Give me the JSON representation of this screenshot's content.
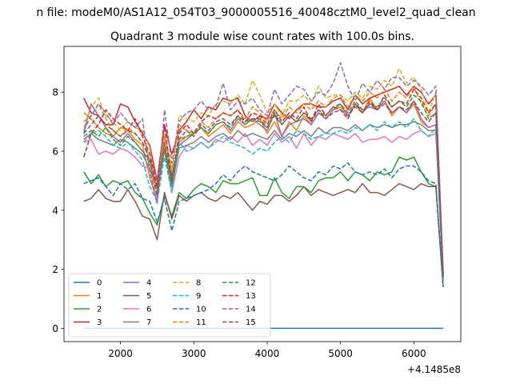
{
  "chart_data": {
    "type": "line",
    "suptitle": "n file: modeM0/AS1A12_054T03_9000005516_40048cztM0_level2_quad_clean",
    "title": "Quadrant 3 module wise count rates with 100.0s bins.",
    "xlabel": "",
    "ylabel": "",
    "x_offset_label": "+4.1485e8",
    "xlim": [
      1230,
      6640
    ],
    "ylim": [
      -0.45,
      9.55
    ],
    "xticks": [
      2000,
      3000,
      4000,
      5000,
      6000
    ],
    "xtick_labels": [
      "2000",
      "3000",
      "4000",
      "5000",
      "6000"
    ],
    "yticks": [
      0,
      2,
      4,
      6,
      8
    ],
    "ytick_labels": [
      "0",
      "2",
      "4",
      "6",
      "8"
    ],
    "grid": false,
    "legend_position": "lower-left",
    "legend_columns": 4,
    "x": [
      1500,
      1600,
      1700,
      1800,
      1900,
      2000,
      2100,
      2200,
      2300,
      2400,
      2500,
      2600,
      2700,
      2800,
      2900,
      3000,
      3100,
      3200,
      3300,
      3400,
      3500,
      3600,
      3700,
      3800,
      3900,
      4000,
      4100,
      4200,
      4300,
      4400,
      4500,
      4600,
      4700,
      4800,
      4900,
      5000,
      5100,
      5200,
      5300,
      5400,
      5500,
      5600,
      5700,
      5800,
      5900,
      6000,
      6100,
      6200,
      6300,
      6400
    ],
    "series": [
      {
        "name": "0",
        "color": "#1f77b4",
        "dash": "solid",
        "values": [
          0,
          0,
          0,
          0,
          0,
          0,
          0,
          0,
          0,
          0,
          0,
          0,
          0,
          0,
          0,
          0,
          0,
          0,
          0,
          0,
          0,
          0,
          0,
          0,
          0,
          0,
          0,
          0,
          0,
          0,
          0,
          0,
          0,
          0,
          0,
          0,
          0,
          0,
          0,
          0,
          0,
          0,
          0,
          0,
          0,
          0,
          0,
          0,
          0,
          0
        ]
      },
      {
        "name": "1",
        "color": "#ff7f0e",
        "dash": "solid",
        "values": [
          7.3,
          7.1,
          6.8,
          6.6,
          6.5,
          6.8,
          6.7,
          6.4,
          6.2,
          5.1,
          4.3,
          6.3,
          4.9,
          6.3,
          6.5,
          6.6,
          6.8,
          6.5,
          6.7,
          6.9,
          6.6,
          7.0,
          6.8,
          6.9,
          7.1,
          6.6,
          7.0,
          6.5,
          7.0,
          6.7,
          7.2,
          6.9,
          7.3,
          7.1,
          7.4,
          7.5,
          7.2,
          7.6,
          7.3,
          7.8,
          7.4,
          7.7,
          7.2,
          7.5,
          7.3,
          7.6,
          7.0,
          6.8,
          6.9,
          1.6
        ]
      },
      {
        "name": "2",
        "color": "#2ca02c",
        "dash": "solid",
        "values": [
          5.3,
          4.9,
          5.2,
          4.8,
          5.0,
          4.9,
          5.0,
          4.6,
          4.4,
          3.9,
          3.5,
          4.5,
          3.8,
          4.6,
          4.4,
          4.7,
          4.9,
          4.8,
          4.6,
          5.0,
          4.9,
          4.9,
          5.0,
          5.1,
          4.5,
          4.5,
          5.1,
          4.6,
          4.4,
          4.8,
          4.8,
          4.6,
          5.0,
          5.1,
          5.1,
          5.3,
          5.0,
          5.3,
          5.2,
          5.0,
          5.3,
          5.2,
          5.3,
          5.8,
          5.7,
          5.8,
          5.3,
          4.9,
          4.8,
          1.4
        ]
      },
      {
        "name": "3",
        "color": "#d62728",
        "dash": "solid",
        "values": [
          7.8,
          7.3,
          7.2,
          6.9,
          6.9,
          7.6,
          7.5,
          7.0,
          6.6,
          6.2,
          5.0,
          6.9,
          5.9,
          6.7,
          7.0,
          7.4,
          7.1,
          7.5,
          7.4,
          7.8,
          7.7,
          7.8,
          7.2,
          7.0,
          7.2,
          7.1,
          7.6,
          7.3,
          7.1,
          7.4,
          7.6,
          7.6,
          7.5,
          7.5,
          7.7,
          7.8,
          7.4,
          7.9,
          7.6,
          7.8,
          7.9,
          8.0,
          8.1,
          8.2,
          7.9,
          8.2,
          8.0,
          7.6,
          7.9,
          1.8
        ]
      },
      {
        "name": "4",
        "color": "#9467bd",
        "dash": "solid",
        "values": [
          6.6,
          7.6,
          7.2,
          6.8,
          6.5,
          6.3,
          6.6,
          6.3,
          6.0,
          5.7,
          5.1,
          6.0,
          5.2,
          6.2,
          6.4,
          6.6,
          6.8,
          6.6,
          6.9,
          7.0,
          6.7,
          7.1,
          6.9,
          7.1,
          6.9,
          6.7,
          7.3,
          6.5,
          6.9,
          7.0,
          7.1,
          6.9,
          7.3,
          7.1,
          7.4,
          7.6,
          7.2,
          7.6,
          7.4,
          7.5,
          7.4,
          7.7,
          7.3,
          7.5,
          7.3,
          7.7,
          7.1,
          6.8,
          6.9,
          1.7
        ]
      },
      {
        "name": "5",
        "color": "#8c564b",
        "dash": "solid",
        "values": [
          4.3,
          4.4,
          4.7,
          4.4,
          4.3,
          4.3,
          4.7,
          4.3,
          3.8,
          3.7,
          3.0,
          4.6,
          3.7,
          4.5,
          4.3,
          4.5,
          4.6,
          4.4,
          4.3,
          4.5,
          4.4,
          4.6,
          4.3,
          4.0,
          4.3,
          4.2,
          4.5,
          4.5,
          4.3,
          4.5,
          4.8,
          4.5,
          4.7,
          4.6,
          4.5,
          4.6,
          4.7,
          4.6,
          4.9,
          4.6,
          4.6,
          4.5,
          4.7,
          4.9,
          4.8,
          4.7,
          4.9,
          4.8,
          4.8,
          1.4
        ]
      },
      {
        "name": "6",
        "color": "#e377c2",
        "dash": "solid",
        "values": [
          6.3,
          6.4,
          5.9,
          6.0,
          5.9,
          6.1,
          6.0,
          5.8,
          5.5,
          5.4,
          4.4,
          6.1,
          4.6,
          5.8,
          6.2,
          6.1,
          6.3,
          6.1,
          6.4,
          6.3,
          6.5,
          6.3,
          6.6,
          6.2,
          6.4,
          6.2,
          6.6,
          6.3,
          6.5,
          6.1,
          6.6,
          6.2,
          6.5,
          6.4,
          6.6,
          6.5,
          6.4,
          6.6,
          6.3,
          6.4,
          6.4,
          6.5,
          6.3,
          6.5,
          6.4,
          6.6,
          6.7,
          6.5,
          6.6,
          1.7
        ]
      },
      {
        "name": "7",
        "color": "#7f7f7f",
        "dash": "solid",
        "values": [
          6.4,
          6.6,
          6.4,
          6.3,
          6.2,
          6.4,
          6.3,
          6.1,
          5.9,
          5.4,
          4.8,
          6.0,
          4.8,
          6.1,
          6.2,
          6.3,
          6.5,
          6.3,
          6.5,
          6.6,
          6.4,
          6.7,
          6.5,
          6.6,
          6.5,
          6.4,
          6.7,
          6.4,
          6.6,
          6.5,
          6.7,
          6.5,
          6.8,
          6.6,
          6.8,
          6.8,
          6.7,
          6.9,
          6.7,
          6.9,
          6.8,
          6.9,
          6.8,
          6.9,
          6.9,
          7.0,
          6.9,
          6.7,
          6.7,
          1.7
        ]
      },
      {
        "name": "8",
        "color": "#bcbd22",
        "dash": "dashed",
        "values": [
          6.8,
          7.5,
          7.8,
          7.2,
          7.0,
          6.7,
          7.0,
          6.8,
          6.7,
          6.1,
          4.6,
          6.6,
          5.4,
          7.2,
          7.1,
          7.0,
          7.3,
          7.2,
          7.6,
          7.7,
          7.6,
          7.9,
          7.6,
          8.4,
          7.9,
          7.3,
          7.6,
          7.2,
          7.7,
          7.7,
          7.9,
          7.6,
          8.2,
          7.8,
          7.9,
          7.9,
          7.7,
          8.0,
          7.8,
          8.2,
          8.1,
          8.4,
          8.2,
          8.8,
          8.3,
          8.5,
          8.1,
          7.3,
          8.0,
          1.9
        ]
      },
      {
        "name": "9",
        "color": "#17becf",
        "dash": "dashed",
        "values": [
          6.3,
          6.6,
          6.7,
          6.5,
          6.2,
          6.1,
          6.3,
          6.0,
          5.7,
          4.8,
          4.3,
          5.8,
          4.6,
          6.3,
          6.0,
          6.1,
          6.3,
          6.1,
          6.3,
          6.5,
          6.3,
          6.2,
          6.1,
          5.9,
          6.1,
          6.0,
          6.3,
          6.5,
          6.3,
          6.7,
          6.6,
          6.4,
          6.5,
          6.6,
          6.6,
          6.7,
          6.6,
          6.8,
          6.7,
          6.9,
          6.7,
          7.0,
          6.8,
          7.0,
          6.8,
          7.1,
          6.7,
          6.5,
          6.8,
          1.6
        ]
      },
      {
        "name": "10",
        "color": "#1f77b4",
        "dash": "dashed",
        "values": [
          4.9,
          5.0,
          5.1,
          4.8,
          4.5,
          4.9,
          4.7,
          4.9,
          4.4,
          4.3,
          3.6,
          4.4,
          3.3,
          4.3,
          4.4,
          4.5,
          4.6,
          4.7,
          4.9,
          5.2,
          5.0,
          5.3,
          5.5,
          5.3,
          5.2,
          5.1,
          5.0,
          5.2,
          5.5,
          5.3,
          5.1,
          5.0,
          5.3,
          5.2,
          5.5,
          5.4,
          5.6,
          5.3,
          5.2,
          5.3,
          5.2,
          5.4,
          5.1,
          5.4,
          5.5,
          5.5,
          5.3,
          5.0,
          4.9,
          1.4
        ]
      },
      {
        "name": "11",
        "color": "#ff7f0e",
        "dash": "dashed",
        "values": [
          7.0,
          7.2,
          7.6,
          7.1,
          6.7,
          6.5,
          6.8,
          6.6,
          6.3,
          5.9,
          4.9,
          6.5,
          5.3,
          6.9,
          6.7,
          6.6,
          7.0,
          6.8,
          7.1,
          7.3,
          7.2,
          7.4,
          7.1,
          7.5,
          7.3,
          7.0,
          7.4,
          7.1,
          7.5,
          7.3,
          7.6,
          7.4,
          7.7,
          7.5,
          7.8,
          7.9,
          7.5,
          7.9,
          7.7,
          8.0,
          7.8,
          8.1,
          7.7,
          8.0,
          7.8,
          8.2,
          7.6,
          7.2,
          7.6,
          1.8
        ]
      },
      {
        "name": "12",
        "color": "#2ca02c",
        "dash": "dashed",
        "values": [
          6.5,
          6.7,
          6.5,
          6.8,
          6.4,
          6.2,
          6.5,
          6.3,
          6.0,
          5.6,
          4.7,
          6.1,
          4.9,
          6.4,
          6.5,
          6.6,
          6.8,
          6.6,
          6.9,
          7.0,
          6.8,
          7.2,
          6.9,
          7.1,
          7.0,
          6.8,
          7.3,
          6.9,
          7.2,
          7.0,
          7.3,
          7.1,
          7.4,
          7.2,
          7.5,
          7.6,
          7.3,
          7.7,
          7.4,
          7.6,
          7.5,
          7.8,
          7.5,
          7.7,
          7.5,
          7.9,
          7.7,
          7.1,
          7.3,
          1.8
        ]
      },
      {
        "name": "13",
        "color": "#d62728",
        "dash": "dashed",
        "values": [
          5.8,
          6.6,
          6.9,
          7.4,
          7.1,
          6.9,
          6.7,
          7.1,
          6.5,
          5.9,
          4.8,
          6.9,
          5.0,
          6.6,
          6.9,
          6.6,
          7.0,
          7.2,
          7.1,
          7.3,
          7.2,
          7.4,
          7.0,
          7.3,
          7.2,
          6.9,
          7.4,
          7.0,
          7.3,
          7.1,
          7.5,
          7.0,
          7.6,
          7.2,
          7.5,
          7.4,
          7.1,
          7.6,
          7.3,
          7.7,
          7.4,
          7.9,
          7.5,
          7.7,
          7.6,
          8.1,
          7.8,
          7.3,
          7.6,
          1.8
        ]
      },
      {
        "name": "14",
        "color": "#9467bd",
        "dash": "dashed",
        "values": [
          6.7,
          7.2,
          7.6,
          7.3,
          6.9,
          7.3,
          7.0,
          6.8,
          7.1,
          5.3,
          4.2,
          7.4,
          5.6,
          7.0,
          7.3,
          7.4,
          7.7,
          7.4,
          7.5,
          8.3,
          7.4,
          7.7,
          7.6,
          7.8,
          7.4,
          7.2,
          8.1,
          7.6,
          7.9,
          8.2,
          8.1,
          7.7,
          8.0,
          7.9,
          8.3,
          9.0,
          8.2,
          7.7,
          8.3,
          8.0,
          8.4,
          8.1,
          8.5,
          8.5,
          8.2,
          8.4,
          8.2,
          7.9,
          8.2,
          1.9
        ]
      },
      {
        "name": "15",
        "color": "#8c564b",
        "dash": "dashed",
        "values": [
          6.6,
          6.9,
          7.2,
          6.9,
          6.7,
          6.5,
          6.7,
          6.6,
          6.3,
          5.7,
          4.5,
          6.3,
          5.1,
          6.4,
          6.7,
          6.5,
          6.9,
          6.7,
          7.0,
          7.1,
          6.9,
          7.2,
          7.0,
          7.1,
          7.1,
          6.8,
          7.2,
          6.9,
          7.2,
          7.0,
          7.3,
          7.0,
          7.4,
          7.1,
          7.3,
          7.4,
          7.2,
          7.5,
          7.3,
          7.6,
          7.4,
          7.6,
          7.3,
          7.5,
          7.4,
          7.7,
          7.3,
          7.0,
          7.3,
          1.8
        ]
      }
    ]
  }
}
